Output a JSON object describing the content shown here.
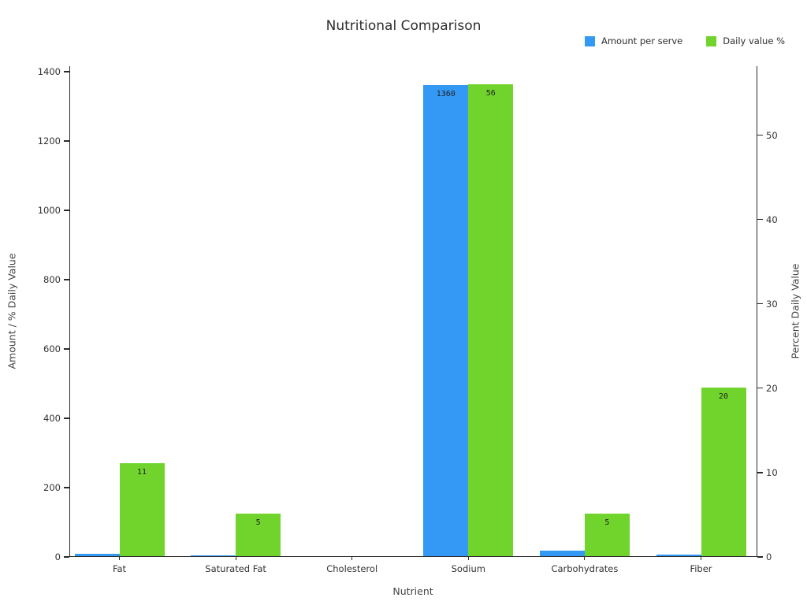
{
  "chart_data": {
    "type": "bar",
    "title": "Nutritional Comparison",
    "xlabel": "Nutrient",
    "ylabel_left": "Amount / % Daily Value",
    "ylabel_right": "Percent Daily Value",
    "categories": [
      "Fat",
      "Saturated Fat",
      "Cholesterol",
      "Sodium",
      "Carbohydrates",
      "Fiber"
    ],
    "series": [
      {
        "name": "Amount per serve",
        "axis": "left",
        "color": "#3399f4",
        "values": [
          7,
          1,
          0,
          1360,
          15,
          5
        ],
        "bar_labels": [
          "",
          "",
          "",
          "1360",
          "",
          ""
        ]
      },
      {
        "name": "Daily value %",
        "axis": "right",
        "color": "#70d42c",
        "values": [
          11,
          5,
          0,
          56,
          5,
          20
        ],
        "bar_labels": [
          "11",
          "5",
          "",
          "56",
          "5",
          "20"
        ]
      }
    ],
    "left_axis": {
      "ticks": [
        0,
        200,
        400,
        600,
        800,
        1000,
        1200,
        1400
      ],
      "max": 1416
    },
    "right_axis": {
      "ticks": [
        0,
        10,
        20,
        30,
        40,
        50
      ],
      "max": 58.2
    },
    "legend_position": "top-right",
    "grid": false,
    "background": "#ffffff"
  }
}
